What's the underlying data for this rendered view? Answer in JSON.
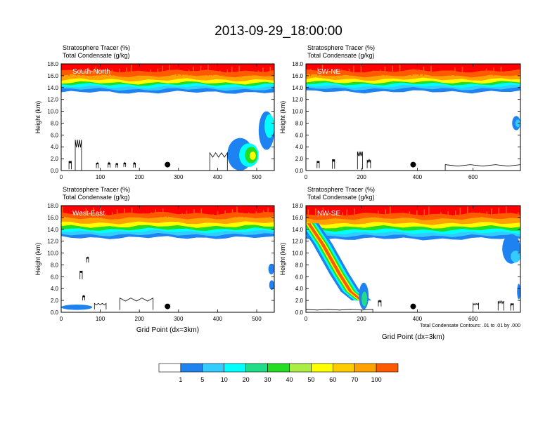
{
  "page_title": "2013-09-29_18:00:00",
  "colors": {
    "fill_levels": [
      "#ffffff",
      "#1e82f0",
      "#33ccff",
      "#00ffff",
      "#22dd88",
      "#22dd22",
      "#aaee44",
      "#ffff00",
      "#ffcc00",
      "#ffa200",
      "#ff5a00",
      "#ff0000"
    ],
    "contour_line": "#000000",
    "marker": "#000000"
  },
  "colorbar": {
    "labels": [
      "1",
      "5",
      "10",
      "20",
      "30",
      "40",
      "50",
      "60",
      "70",
      "100"
    ]
  },
  "panels": [
    {
      "id": "south-north",
      "label": "South-North",
      "field_title_1": "Stratosphere Tracer   (%)",
      "field_title_2": "Total Condensate   (g/kg)",
      "ylabel": "Height (km)",
      "xlabel": "",
      "footnote": ""
    },
    {
      "id": "sw-ne",
      "label": "SW-NE",
      "field_title_1": "Stratosphere Tracer   (%)",
      "field_title_2": "Total Condensate   (g/kg)",
      "ylabel": "Height (km)",
      "xlabel": "",
      "footnote": ""
    },
    {
      "id": "west-east",
      "label": "West-East",
      "field_title_1": "Stratosphere Tracer   (%)",
      "field_title_2": "Total Condensate   (g/kg)",
      "ylabel": "Height (km)",
      "xlabel": "Grid Point (dx=3km)",
      "footnote": ""
    },
    {
      "id": "nw-se",
      "label": "NW-SE",
      "field_title_1": "Stratosphere Tracer   (%)",
      "field_title_2": "Total Condensate   (g/kg)",
      "ylabel": "Height (km)",
      "xlabel": "Grid Point (dx=3km)",
      "footnote": "Total Condensate Contours: .01 to .01 by .000"
    }
  ],
  "chart_data": [
    {
      "type": "heatmap",
      "panel": "South-North",
      "xlim": [
        0,
        545
      ],
      "ylim": [
        0,
        18
      ],
      "x_ticks": [
        0,
        100,
        200,
        300,
        400,
        500
      ],
      "y_ticks": [
        "0.0",
        "2.0",
        "4.0",
        "6.0",
        "8.0",
        "10.0",
        "12.0",
        "14.0",
        "16.0",
        "18.0"
      ],
      "tracer_band": [
        {
          "level": 1,
          "bottom_km": 13.2
        },
        {
          "level": 2,
          "bottom_km": 13.7
        },
        {
          "level": 3,
          "bottom_km": 14.1
        },
        {
          "level": 5,
          "bottom_km": 14.5
        },
        {
          "level": 7,
          "bottom_km": 14.8
        },
        {
          "level": 9,
          "bottom_km": 15.3
        },
        {
          "level": 10,
          "bottom_km": 16.0
        },
        {
          "level": 11,
          "bottom_km": 16.8
        }
      ],
      "low_features": [
        {
          "x": 425,
          "y": 0.0,
          "w": 65,
          "h": 5.5,
          "level": 1
        },
        {
          "x": 455,
          "y": 0.6,
          "w": 50,
          "h": 4.0,
          "level": 3
        },
        {
          "x": 470,
          "y": 1.2,
          "w": 32,
          "h": 2.8,
          "level": 5
        },
        {
          "x": 482,
          "y": 1.8,
          "w": 16,
          "h": 1.4,
          "level": 7
        },
        {
          "x": 505,
          "y": 3.5,
          "w": 40,
          "h": 6.5,
          "level": 1
        },
        {
          "x": 520,
          "y": 5.5,
          "w": 25,
          "h": 4.0,
          "level": 3
        }
      ],
      "condensate_contours": [
        {
          "x": 36,
          "y": 0.0,
          "w": 16,
          "h": 5.2
        },
        {
          "x": 20,
          "y": 0.2,
          "w": 6,
          "h": 1.4
        },
        {
          "x": 90,
          "y": 0.4,
          "w": 5,
          "h": 0.9
        },
        {
          "x": 120,
          "y": 0.5,
          "w": 5,
          "h": 0.8
        },
        {
          "x": 140,
          "y": 0.5,
          "w": 5,
          "h": 0.7
        },
        {
          "x": 160,
          "y": 0.6,
          "w": 5,
          "h": 0.7
        },
        {
          "x": 185,
          "y": 0.5,
          "w": 5,
          "h": 0.8
        },
        {
          "x": 380,
          "y": 0.0,
          "w": 45,
          "h": 3.0
        }
      ],
      "marker": {
        "x": 272,
        "y": 1.0
      }
    },
    {
      "type": "heatmap",
      "panel": "SW-NE",
      "xlim": [
        0,
        770
      ],
      "ylim": [
        0,
        18
      ],
      "x_ticks": [
        0,
        200,
        400,
        600
      ],
      "y_ticks": [
        "0.0",
        "2.0",
        "4.0",
        "6.0",
        "8.0",
        "10.0",
        "12.0",
        "14.0",
        "16.0",
        "18.0"
      ],
      "tracer_band": [
        {
          "level": 1,
          "bottom_km": 13.3
        },
        {
          "level": 2,
          "bottom_km": 13.8
        },
        {
          "level": 3,
          "bottom_km": 14.2
        },
        {
          "level": 5,
          "bottom_km": 14.6
        },
        {
          "level": 7,
          "bottom_km": 14.9
        },
        {
          "level": 9,
          "bottom_km": 15.4
        },
        {
          "level": 10,
          "bottom_km": 16.0
        },
        {
          "level": 11,
          "bottom_km": 16.8
        }
      ],
      "low_features": [
        {
          "x": 740,
          "y": 6.8,
          "w": 30,
          "h": 2.4,
          "level": 1
        },
        {
          "x": 752,
          "y": 7.3,
          "w": 18,
          "h": 1.3,
          "level": 2
        }
      ],
      "condensate_contours": [
        {
          "x": 40,
          "y": 0.4,
          "w": 8,
          "h": 1.2
        },
        {
          "x": 95,
          "y": 0.3,
          "w": 8,
          "h": 1.6
        },
        {
          "x": 185,
          "y": 0.2,
          "w": 18,
          "h": 3.0
        },
        {
          "x": 220,
          "y": 0.4,
          "w": 12,
          "h": 1.4
        },
        {
          "x": 500,
          "y": 0.0,
          "w": 270,
          "h": 1.0
        }
      ],
      "marker": {
        "x": 385,
        "y": 1.0
      }
    },
    {
      "type": "heatmap",
      "panel": "West-East",
      "xlim": [
        0,
        545
      ],
      "ylim": [
        0,
        18
      ],
      "x_ticks": [
        0,
        100,
        200,
        300,
        400,
        500
      ],
      "y_ticks": [
        "0.0",
        "2.0",
        "4.0",
        "6.0",
        "8.0",
        "10.0",
        "12.0",
        "14.0",
        "16.0",
        "18.0"
      ],
      "tracer_band": [
        {
          "level": 1,
          "bottom_km": 12.6
        },
        {
          "level": 2,
          "bottom_km": 13.1
        },
        {
          "level": 3,
          "bottom_km": 13.6
        },
        {
          "level": 5,
          "bottom_km": 14.0
        },
        {
          "level": 7,
          "bottom_km": 14.5
        },
        {
          "level": 9,
          "bottom_km": 15.1
        },
        {
          "level": 10,
          "bottom_km": 15.9
        },
        {
          "level": 11,
          "bottom_km": 16.7
        }
      ],
      "low_features": [
        {
          "x": 0,
          "y": 0.4,
          "w": 80,
          "h": 0.9,
          "level": 1
        },
        {
          "x": 530,
          "y": 6.4,
          "w": 15,
          "h": 1.8,
          "level": 1
        },
        {
          "x": 532,
          "y": 3.8,
          "w": 13,
          "h": 1.6,
          "level": 1
        }
      ],
      "condensate_contours": [
        {
          "x": 48,
          "y": 5.6,
          "w": 6,
          "h": 1.4
        },
        {
          "x": 65,
          "y": 8.4,
          "w": 5,
          "h": 0.9
        },
        {
          "x": 55,
          "y": 2.0,
          "w": 5,
          "h": 0.8
        },
        {
          "x": 85,
          "y": 0.5,
          "w": 30,
          "h": 1.0
        },
        {
          "x": 150,
          "y": 0.4,
          "w": 85,
          "h": 2.0
        }
      ],
      "marker": {
        "x": 272,
        "y": 1.0
      }
    },
    {
      "type": "heatmap",
      "panel": "NW-SE",
      "xlim": [
        0,
        770
      ],
      "ylim": [
        0,
        18
      ],
      "x_ticks": [
        0,
        200,
        400,
        600
      ],
      "y_ticks": [
        "0.0",
        "2.0",
        "4.0",
        "6.0",
        "8.0",
        "10.0",
        "12.0",
        "14.0",
        "16.0",
        "18.0"
      ],
      "tracer_band": [
        {
          "level": 1,
          "bottom_km": 12.4
        },
        {
          "level": 2,
          "bottom_km": 12.9
        },
        {
          "level": 3,
          "bottom_km": 13.4
        },
        {
          "level": 5,
          "bottom_km": 13.9
        },
        {
          "level": 7,
          "bottom_km": 14.4
        },
        {
          "level": 9,
          "bottom_km": 15.0
        },
        {
          "level": 10,
          "bottom_km": 15.8
        },
        {
          "level": 11,
          "bottom_km": 16.6
        }
      ],
      "plume": [
        {
          "level": 1,
          "width_frac": 1.0
        },
        {
          "level": 3,
          "width_frac": 0.72
        },
        {
          "level": 5,
          "width_frac": 0.5
        },
        {
          "level": 7,
          "width_frac": 0.32
        },
        {
          "level": 10,
          "width_frac": 0.18
        }
      ],
      "plume_path": [
        [
          10,
          15.0
        ],
        [
          60,
          11.5
        ],
        [
          120,
          6.5
        ],
        [
          160,
          3.5
        ],
        [
          200,
          2.0
        ]
      ],
      "low_features": [
        {
          "x": 190,
          "y": 0.5,
          "w": 35,
          "h": 4.5,
          "level": 1
        },
        {
          "x": 200,
          "y": 1.0,
          "w": 20,
          "h": 2.5,
          "level": 4
        },
        {
          "x": 705,
          "y": 8.2,
          "w": 65,
          "h": 5.0,
          "level": 1
        },
        {
          "x": 735,
          "y": 8.4,
          "w": 35,
          "h": 2.0,
          "level": 2
        },
        {
          "x": 758,
          "y": 2.2,
          "w": 12,
          "h": 2.6,
          "level": 1
        }
      ],
      "condensate_contours": [
        {
          "x": 0,
          "y": 0.0,
          "w": 240,
          "h": 0.5
        },
        {
          "x": 260,
          "y": 1.0,
          "w": 10,
          "h": 1.0
        },
        {
          "x": 600,
          "y": 0.5,
          "w": 20,
          "h": 1.0
        },
        {
          "x": 690,
          "y": 0.3,
          "w": 20,
          "h": 1.6
        },
        {
          "x": 735,
          "y": 0.3,
          "w": 10,
          "h": 1.2
        }
      ],
      "marker": {
        "x": 385,
        "y": 1.0
      }
    }
  ]
}
